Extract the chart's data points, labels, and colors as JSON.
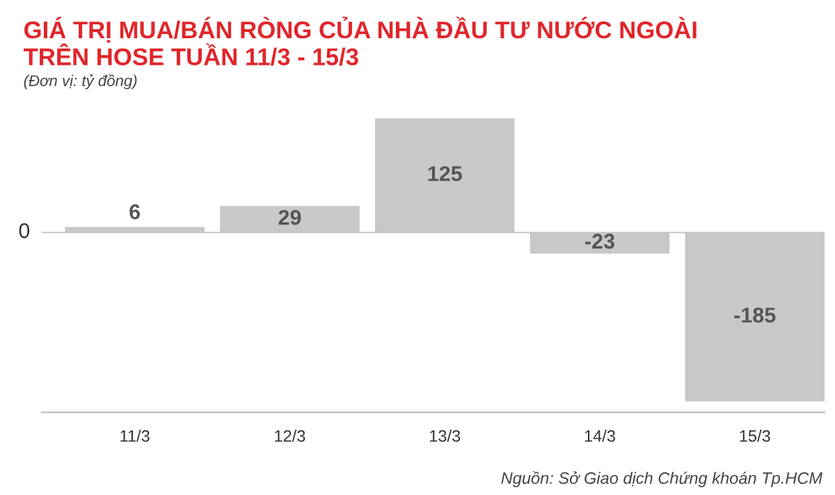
{
  "chart_data": {
    "type": "bar",
    "title": "GIÁ TRỊ MUA/BÁN RÒNG CỦA NHÀ ĐẦU TƯ NƯỚC NGOÀI\nTRÊN HOSE TUẦN 11/3 - 15/3",
    "subtitle": "(Đơn vị: tỷ đồng)",
    "categories": [
      "11/3",
      "12/3",
      "13/3",
      "14/3",
      "15/3"
    ],
    "values": [
      6,
      29,
      125,
      -23,
      -185
    ],
    "color": "#c8c8c8",
    "ref_lines": [
      {
        "axis": "y",
        "value": 0,
        "label": "0",
        "color": "#bfbfbf"
      }
    ],
    "data_labels": true,
    "grid": false,
    "legend": false,
    "annotations": [
      "Nguồn: Sở Giao dịch Chứng khoán Tp.HCM"
    ]
  }
}
